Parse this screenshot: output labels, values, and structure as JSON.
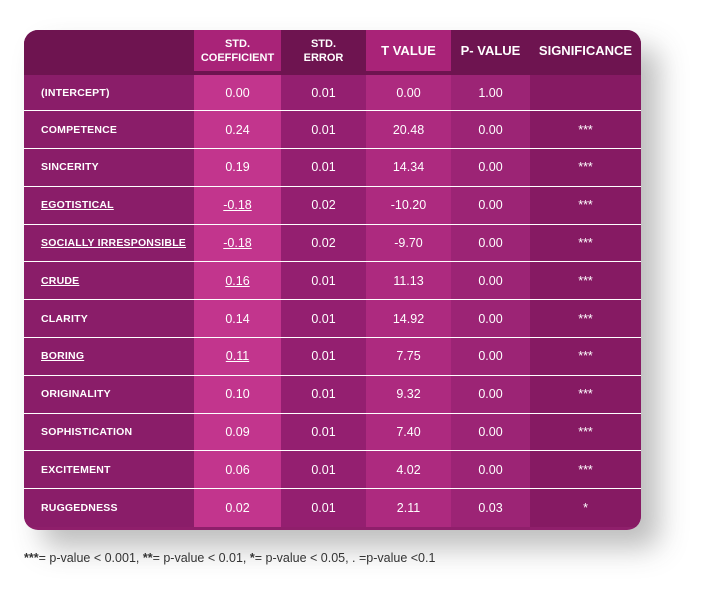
{
  "table": {
    "headers": [
      {
        "line1": "",
        "line2": ""
      },
      {
        "line1": "STD.",
        "line2": "COEFFICIENT"
      },
      {
        "line1": "STD.",
        "line2": "ERROR"
      },
      {
        "line1": "T VALUE",
        "line2": ""
      },
      {
        "line1": "P- VALUE",
        "line2": ""
      },
      {
        "line1": "SIGNIFICANCE",
        "line2": ""
      }
    ],
    "rows": [
      {
        "label": "(INTERCEPT)",
        "coef": "0.00",
        "err": "0.01",
        "t": "0.00",
        "p": "1.00",
        "sig": "",
        "underline": false
      },
      {
        "label": "COMPETENCE",
        "coef": "0.24",
        "err": "0.01",
        "t": "20.48",
        "p": "0.00",
        "sig": "***",
        "underline": false
      },
      {
        "label": "SINCERITY",
        "coef": "0.19",
        "err": "0.01",
        "t": "14.34",
        "p": "0.00",
        "sig": "***",
        "underline": false
      },
      {
        "label": "EGOTISTICAL",
        "coef": "-0.18",
        "err": "0.02",
        "t": "-10.20",
        "p": "0.00",
        "sig": "***",
        "underline": true
      },
      {
        "label": "SOCIALLY IRRESPONSIBLE",
        "coef": "-0.18",
        "err": "0.02",
        "t": "-9.70",
        "p": "0.00",
        "sig": "***",
        "underline": true
      },
      {
        "label": "CRUDE",
        "coef": "0.16",
        "err": "0.01",
        "t": "11.13",
        "p": "0.00",
        "sig": "***",
        "underline": true
      },
      {
        "label": "CLARITY",
        "coef": "0.14",
        "err": "0.01",
        "t": "14.92",
        "p": "0.00",
        "sig": "***",
        "underline": false
      },
      {
        "label": "BORING",
        "coef": "0.11",
        "err": "0.01",
        "t": "7.75",
        "p": "0.00",
        "sig": "***",
        "underline": true
      },
      {
        "label": "ORIGINALITY",
        "coef": "0.10",
        "err": "0.01",
        "t": "9.32",
        "p": "0.00",
        "sig": "***",
        "underline": false
      },
      {
        "label": "SOPHISTICATION",
        "coef": "0.09",
        "err": "0.01",
        "t": "7.40",
        "p": "0.00",
        "sig": "***",
        "underline": false
      },
      {
        "label": "EXCITEMENT",
        "coef": "0.06",
        "err": "0.01",
        "t": "4.02",
        "p": "0.00",
        "sig": "***",
        "underline": false
      },
      {
        "label": "RUGGEDNESS",
        "coef": "0.02",
        "err": "0.01",
        "t": "2.11",
        "p": "0.03",
        "sig": "*",
        "underline": false
      }
    ]
  },
  "footnote": {
    "s1": "***",
    "t1": "= p-value < 0.001, ",
    "s2": "**",
    "t2": "= p-value < 0.01, ",
    "s3": "*",
    "t3": "= p-value < 0.05, . =p-value <0.1"
  },
  "colors": {
    "header": "#6e1450",
    "body": "#93206f",
    "highlight": "#c2358d"
  }
}
